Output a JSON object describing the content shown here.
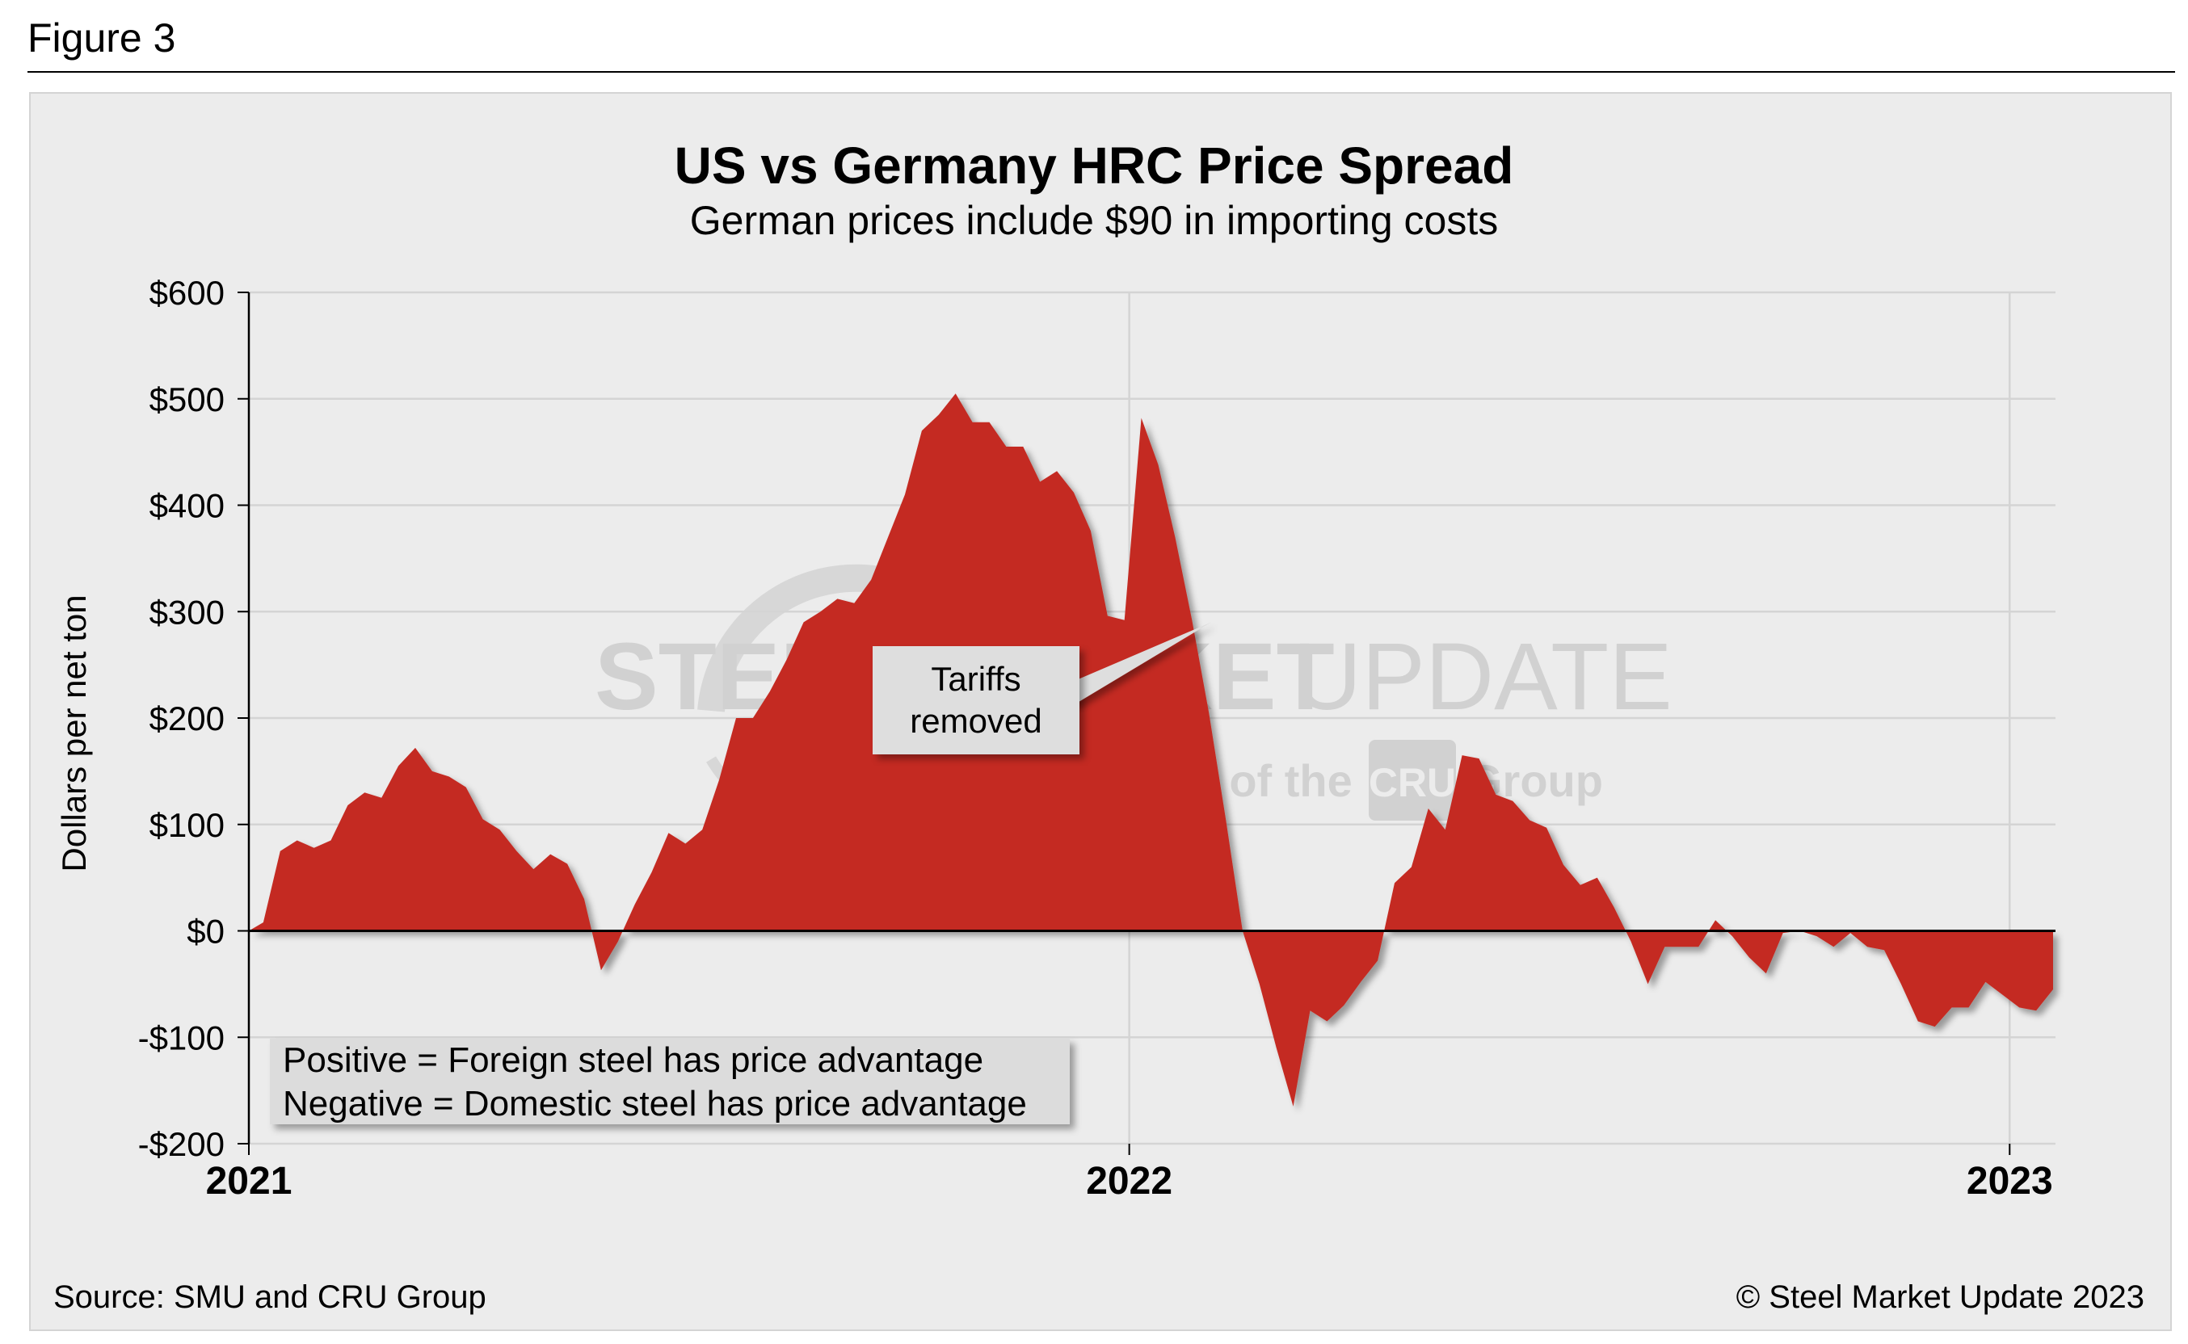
{
  "figure_label": "Figure 3",
  "source": "Source: SMU and CRU Group",
  "copyright": "© Steel Market Update 2023",
  "watermark": {
    "line1_bold": "STEEL MARKET",
    "line1_light": "UPDATE",
    "line2_prefix": "part of the",
    "line2_badge": "CRU",
    "line2_suffix": "Group"
  },
  "legend_note": {
    "line1": "Positive = Foreign steel has price advantage",
    "line2": "Negative = Domestic steel has price advantage"
  },
  "annotation": {
    "line1": "Tariffs",
    "line2": "removed",
    "target_x": "2022-02-04",
    "target_y": 290
  },
  "colors": {
    "area_fill": "#c42a21",
    "panel_background": "#ececec",
    "gridline": "#d4d4d4",
    "zero_line": "#000000"
  },
  "chart_data": {
    "type": "area",
    "title": "US vs Germany HRC Price Spread",
    "subtitle": "German prices include $90 in importing costs",
    "xlabel": "",
    "ylabel": "Dollars per net ton",
    "ylim": [
      -200,
      600
    ],
    "yticks": [
      600,
      500,
      400,
      300,
      200,
      100,
      0,
      -100,
      -200
    ],
    "ytick_labels": [
      "$600",
      "$500",
      "$400",
      "$300",
      "$200",
      "$100",
      "$0",
      "-$100",
      "-$200"
    ],
    "xlim": [
      "2021-01-01",
      "2023-01-20"
    ],
    "xticks": [
      "2021-01-01",
      "2022-01-01",
      "2023-01-01"
    ],
    "xtick_labels": [
      "2021",
      "2022",
      "2023"
    ],
    "grid": true,
    "series": [
      {
        "x": [
          "2021-01-01",
          "2021-01-07",
          "2021-01-14",
          "2021-01-21",
          "2021-01-28",
          "2021-02-04",
          "2021-02-11",
          "2021-02-18",
          "2021-02-25",
          "2021-03-04",
          "2021-03-11",
          "2021-03-18",
          "2021-03-25",
          "2021-04-01",
          "2021-04-08",
          "2021-04-15",
          "2021-04-22",
          "2021-04-29",
          "2021-05-06",
          "2021-05-13",
          "2021-05-20",
          "2021-05-27",
          "2021-06-03",
          "2021-06-10",
          "2021-06-17",
          "2021-06-24",
          "2021-07-01",
          "2021-07-08",
          "2021-07-15",
          "2021-07-22",
          "2021-07-29",
          "2021-08-05",
          "2021-08-12",
          "2021-08-19",
          "2021-08-26",
          "2021-09-02",
          "2021-09-09",
          "2021-09-16",
          "2021-09-23",
          "2021-09-30",
          "2021-10-07",
          "2021-10-14",
          "2021-10-21",
          "2021-10-28",
          "2021-11-04",
          "2021-11-11",
          "2021-11-18",
          "2021-11-25",
          "2021-12-02",
          "2021-12-09",
          "2021-12-16",
          "2021-12-23",
          "2021-12-30",
          "2022-01-06",
          "2022-01-13",
          "2022-01-20",
          "2022-01-27",
          "2022-02-03",
          "2022-02-10",
          "2022-02-17",
          "2022-02-24",
          "2022-03-03",
          "2022-03-10",
          "2022-03-17",
          "2022-03-24",
          "2022-03-31",
          "2022-04-07",
          "2022-04-14",
          "2022-04-21",
          "2022-04-28",
          "2022-05-05",
          "2022-05-12",
          "2022-05-19",
          "2022-05-26",
          "2022-06-02",
          "2022-06-09",
          "2022-06-16",
          "2022-06-23",
          "2022-06-30",
          "2022-07-07",
          "2022-07-14",
          "2022-07-21",
          "2022-07-28",
          "2022-08-04",
          "2022-08-11",
          "2022-08-18",
          "2022-08-25",
          "2022-09-01",
          "2022-09-08",
          "2022-09-15",
          "2022-09-22",
          "2022-09-29",
          "2022-10-06",
          "2022-10-13",
          "2022-10-20",
          "2022-10-27",
          "2022-11-03",
          "2022-11-10",
          "2022-11-17",
          "2022-11-24",
          "2022-12-01",
          "2022-12-08",
          "2022-12-15",
          "2022-12-22",
          "2022-12-29",
          "2023-01-05",
          "2023-01-12",
          "2023-01-19"
        ],
        "y": [
          0,
          8,
          75,
          85,
          78,
          85,
          118,
          130,
          125,
          155,
          172,
          150,
          145,
          135,
          105,
          95,
          75,
          58,
          72,
          63,
          30,
          -37,
          -10,
          25,
          55,
          92,
          82,
          95,
          142,
          200,
          200,
          225,
          255,
          290,
          300,
          312,
          308,
          330,
          370,
          410,
          470,
          485,
          505,
          478,
          478,
          455,
          455,
          422,
          432,
          412,
          376,
          296,
          292,
          482,
          438,
          370,
          292,
          205,
          105,
          0,
          -50,
          -110,
          -165,
          -75,
          -85,
          -70,
          -48,
          -28,
          45,
          60,
          115,
          95,
          165,
          162,
          128,
          122,
          104,
          97,
          62,
          43,
          50,
          22,
          -10,
          -50,
          -15,
          -15,
          -15,
          10,
          -5,
          -25,
          -40,
          -2,
          0,
          -5,
          -15,
          -2,
          -15,
          -18,
          -50,
          -85,
          -90,
          -72,
          -72,
          -48,
          -60,
          -72,
          -75,
          -55
        ]
      }
    ]
  }
}
